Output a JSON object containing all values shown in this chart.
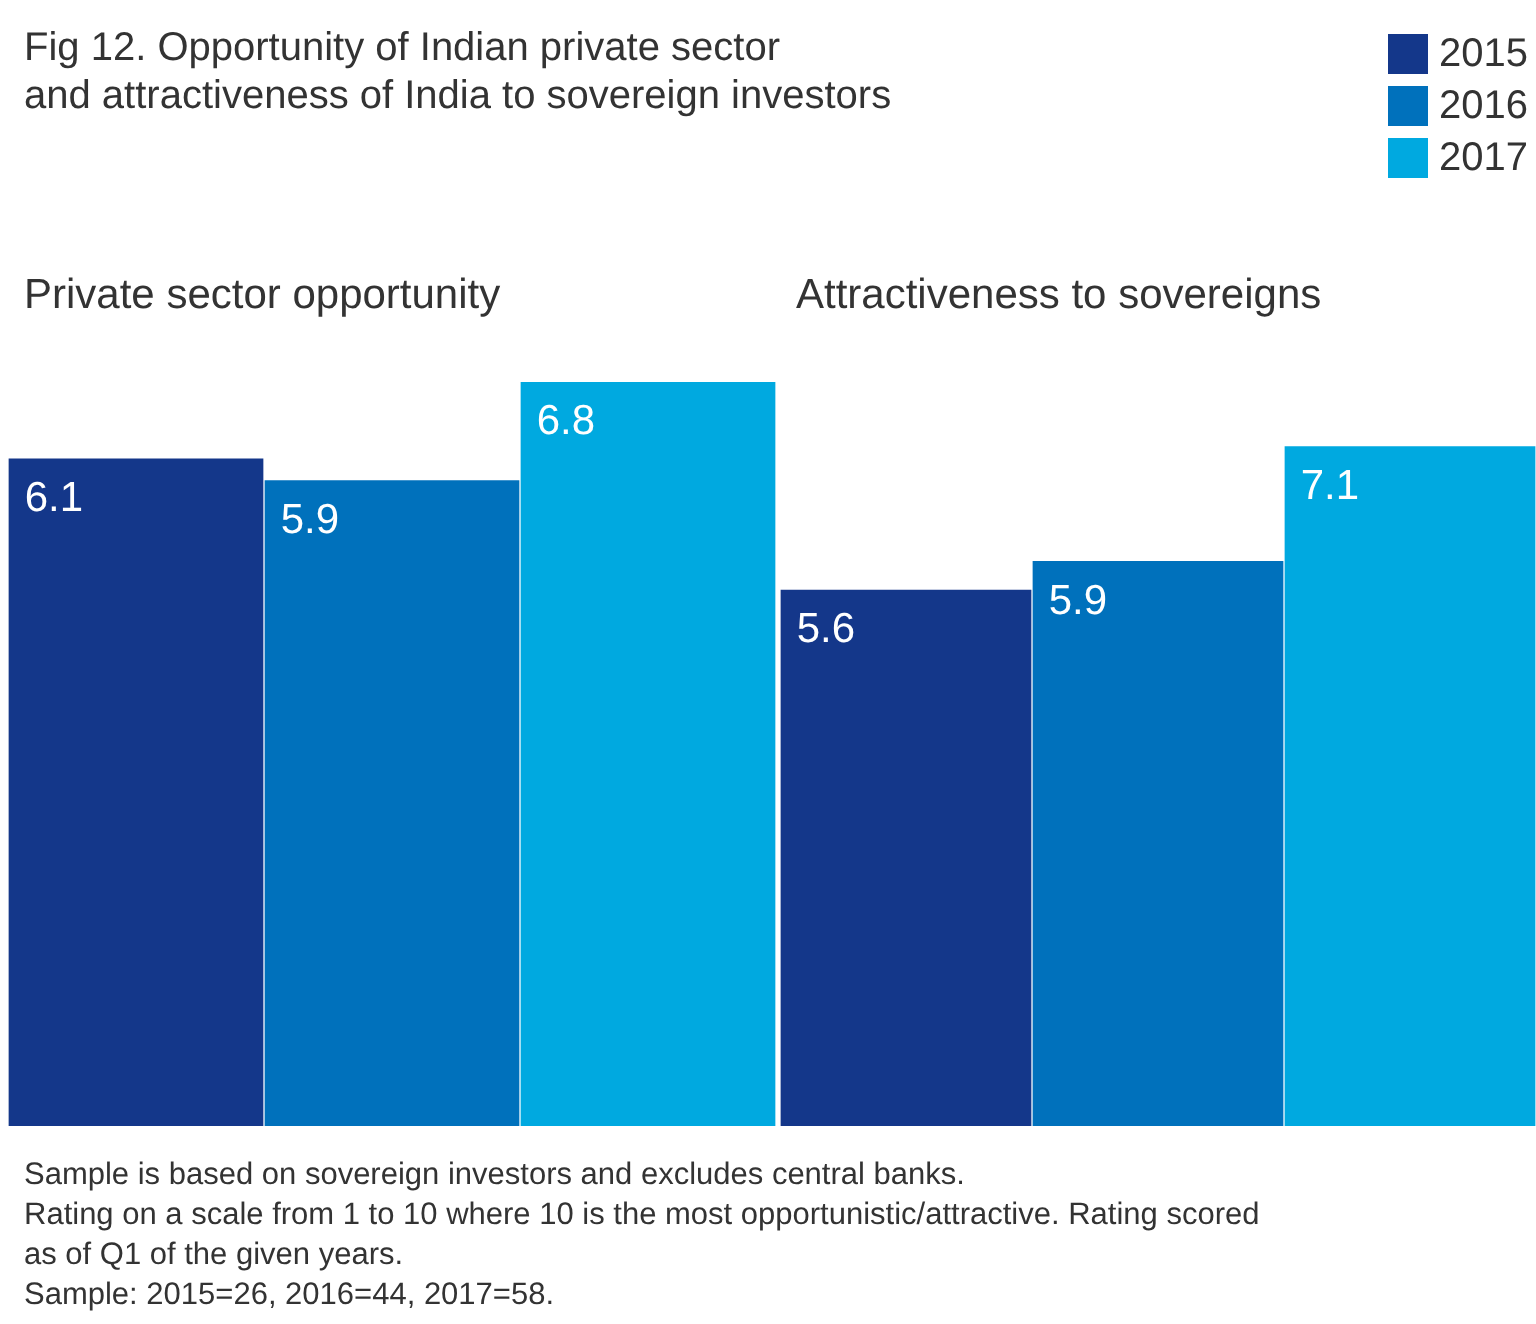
{
  "chart_data": [
    {
      "type": "bar",
      "title": "Fig 12. Opportunity of Indian private sector\nand attractiveness of India to sovereign investors",
      "subtitle": "Private sector opportunity",
      "categories": [
        null
      ],
      "series": [
        {
          "name": "2015",
          "color": "#14378a",
          "values": [
            6.1
          ]
        },
        {
          "name": "2016",
          "color": "#0071bc",
          "values": [
            5.9
          ]
        },
        {
          "name": "2017",
          "color": "#00a9e0",
          "values": [
            6.8
          ]
        }
      ],
      "data_labels": true,
      "tick_labels": false,
      "legend": "top right"
    },
    {
      "type": "bar",
      "subtitle": "Attractiveness to sovereigns",
      "categories": [
        null
      ],
      "series": [
        {
          "color": "#14378a",
          "values": [
            5.6
          ]
        },
        {
          "color": "#0071bc",
          "values": [
            5.9
          ]
        },
        {
          "color": "#00a9e0",
          "values": [
            7.1
          ]
        }
      ],
      "data_labels": true,
      "tick_labels": false,
      "annotations": [
        "Sample is based on sovereign investors and excludes central banks.\nRating on a scale from 1 to 10 where 10 is the most opportunistic/attractive. Rating scored\nas of Q1 of the given years.",
        "Sample: 2015=26, 2016=44, 2017=58."
      ]
    }
  ]
}
